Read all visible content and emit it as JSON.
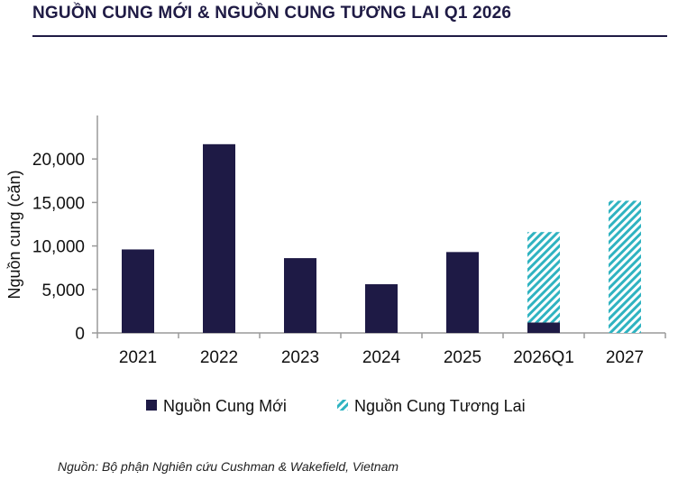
{
  "title": "NGUỒN CUNG MỚI & NGUỒN CUNG TƯƠNG LAI Q1 2026",
  "source": "Nguồn: Bộ phận Nghiên cứu Cushman & Wakefield, Vietnam",
  "colors": {
    "title": "#1f1b45",
    "new_supply": "#1e1a45",
    "future_supply": "#2fb3c1",
    "axis": "#9a9a9a"
  },
  "chart_data": {
    "type": "bar",
    "stacked": true,
    "title": "",
    "xlabel": "",
    "ylabel": "Nguồn cung (căn)",
    "ylim": [
      0,
      25000
    ],
    "yticks": [
      0,
      5000,
      10000,
      15000,
      20000
    ],
    "ytick_labels": [
      "0",
      "5,000",
      "10,000",
      "15,000",
      "20,000"
    ],
    "categories": [
      "2021",
      "2022",
      "2023",
      "2024",
      "2025",
      "2026Q1",
      "2027"
    ],
    "series": [
      {
        "name": "Nguồn Cung Mới",
        "pattern": "solid",
        "color": "#1e1a45",
        "values": [
          9600,
          21700,
          8600,
          5600,
          9300,
          1200,
          0
        ]
      },
      {
        "name": "Nguồn Cung Tương Lai",
        "pattern": "diagonal-hatch",
        "color": "#2fb3c1",
        "values": [
          0,
          0,
          0,
          0,
          0,
          10400,
          15200
        ]
      }
    ],
    "legend_position": "bottom",
    "grid": false
  }
}
